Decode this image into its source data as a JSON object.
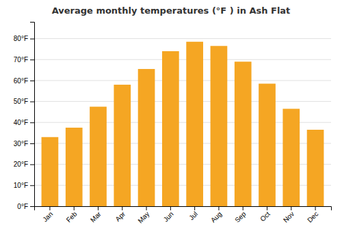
{
  "chart_data": {
    "type": "bar",
    "title": "Average monthly temperatures (°F ) in Ash Flat",
    "categories": [
      "Jan",
      "Feb",
      "Mar",
      "Apr",
      "May",
      "Jun",
      "Jul",
      "Aug",
      "Sep",
      "Oct",
      "Nov",
      "Dec"
    ],
    "values": [
      33,
      37.5,
      47.5,
      58,
      65.5,
      74,
      78.5,
      76.5,
      69,
      58.5,
      46.5,
      36.5
    ],
    "color": "#F5A623",
    "ylim": [
      0,
      88
    ],
    "yticks": [
      {
        "value": 0,
        "label": "0°F"
      },
      {
        "value": 10,
        "label": "10°F"
      },
      {
        "value": 20,
        "label": "20°F"
      },
      {
        "value": 30,
        "label": "30°F"
      },
      {
        "value": 40,
        "label": "40°F"
      },
      {
        "value": 50,
        "label": "50°F"
      },
      {
        "value": 60,
        "label": "60°F"
      },
      {
        "value": 70,
        "label": "70°F"
      },
      {
        "value": 80,
        "label": "80°F"
      }
    ],
    "grid": true
  }
}
